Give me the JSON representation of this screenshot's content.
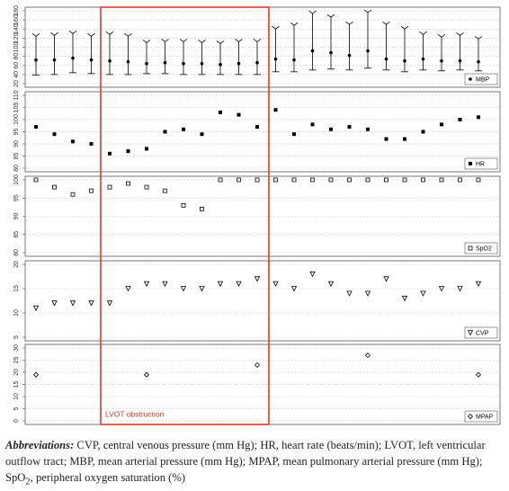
{
  "annotation": "LVOT obstruction",
  "annotation_color": "#e0392b",
  "chart_data": [
    {
      "type": "errorbar",
      "name": "MBP",
      "marker": "circle",
      "color": "#000000",
      "grid": true,
      "ylim": [
        20,
        180
      ],
      "yticks": [
        20,
        40,
        60,
        80,
        100,
        120,
        140,
        160,
        180
      ],
      "values": [
        72,
        72,
        76,
        72,
        70,
        68,
        64,
        66,
        64,
        64,
        62,
        64,
        66,
        74,
        72,
        92,
        88,
        82,
        92,
        74,
        70,
        74,
        70,
        70,
        68
      ],
      "low": [
        39,
        40,
        44,
        42,
        40,
        40,
        42,
        42,
        40,
        40,
        40,
        40,
        40,
        46,
        46,
        50,
        52,
        50,
        54,
        50,
        46,
        50,
        48,
        50,
        48
      ],
      "high": [
        124,
        126,
        130,
        124,
        128,
        124,
        110,
        112,
        112,
        110,
        108,
        112,
        112,
        140,
        148,
        174,
        166,
        150,
        176,
        150,
        140,
        128,
        122,
        126,
        118
      ]
    },
    {
      "type": "scatter",
      "name": "HR",
      "marker": "square",
      "color": "#000000",
      "grid": true,
      "ylim": [
        80,
        110
      ],
      "yticks": [
        80,
        85,
        90,
        95,
        100,
        105,
        110
      ],
      "values": [
        97,
        94,
        91,
        90,
        86,
        87,
        88,
        95,
        96,
        94,
        103,
        102,
        97,
        104,
        94,
        98,
        96,
        97,
        96,
        92,
        92,
        95,
        98,
        100,
        101
      ]
    },
    {
      "type": "scatter",
      "name": "SpO2",
      "marker": "open-square",
      "color": "#000000",
      "grid": true,
      "ylim": [
        80,
        100
      ],
      "yticks": [
        80,
        85,
        90,
        95,
        100
      ],
      "values": [
        100,
        98,
        96,
        97,
        98,
        99,
        98,
        97,
        93,
        92,
        100,
        100,
        100,
        100,
        100,
        100,
        100,
        100,
        100,
        100,
        100,
        100,
        100,
        100,
        100
      ]
    },
    {
      "type": "scatter",
      "name": "CVP",
      "marker": "triangle-down",
      "color": "#000000",
      "grid": true,
      "ylim": [
        5,
        20
      ],
      "yticks": [
        5,
        10,
        15,
        20
      ],
      "values": [
        11,
        12,
        12,
        12,
        12,
        15,
        16,
        16,
        15,
        15,
        16,
        16,
        17,
        16,
        15,
        18,
        16,
        14,
        14,
        17,
        13,
        14,
        15,
        15,
        16
      ]
    },
    {
      "type": "scatter",
      "name": "MPAP",
      "marker": "diamond",
      "color": "#000000",
      "grid": true,
      "ylim": [
        0,
        30
      ],
      "yticks": [
        0,
        5,
        10,
        15,
        20,
        25,
        30
      ],
      "values": [
        19,
        null,
        null,
        null,
        null,
        null,
        19,
        null,
        null,
        null,
        null,
        null,
        23,
        null,
        null,
        null,
        null,
        null,
        27,
        null,
        null,
        null,
        null,
        null,
        19
      ]
    }
  ],
  "caption": {
    "lead": "Abbreviations:",
    "text": " CVP, central venous pressure (mm Hg); HR, heart rate (beats/min); LVOT, left ventricular outflow tract; MBP, mean arterial pressure (mm Hg); MPAP, mean pulmonary arterial pressure (mm Hg); SpO",
    "sub": "2",
    "tail": ", peripheral oxygen saturation (%)"
  }
}
